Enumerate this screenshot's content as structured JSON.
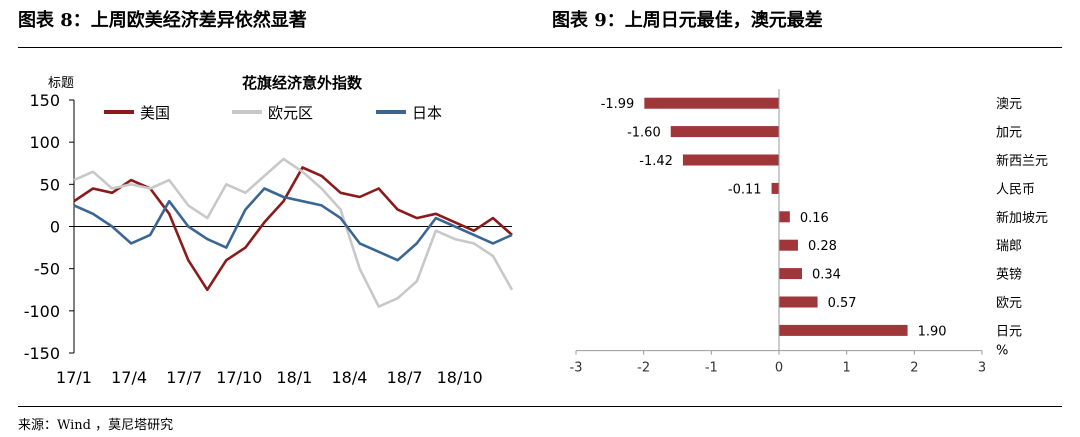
{
  "left_figure": {
    "title": "图表 8：上周欧美经济差异依然显著"
  },
  "right_figure": {
    "title": "图表 9：上周日元最佳，澳元最差"
  },
  "source": "来源：Wind ，莫尼塔研究",
  "colors": {
    "us": "#8b1a1a",
    "eu": "#c8c8c8",
    "jp": "#3b6694",
    "bar": "#a0363a"
  },
  "chart_data": [
    {
      "type": "line",
      "title": "花旗经济意外指数",
      "ylabel": "标题",
      "ylim": [
        -150,
        150
      ],
      "yticks": [
        150,
        100,
        50,
        0,
        -50,
        -100,
        -150
      ],
      "xticks": [
        "17/1",
        "17/4",
        "17/7",
        "17/10",
        "18/1",
        "18/4",
        "18/7",
        "18/10"
      ],
      "x": [
        "17/1",
        "17/2",
        "17/3",
        "17/4",
        "17/5",
        "17/6",
        "17/7",
        "17/8",
        "17/9",
        "17/10",
        "17/11",
        "17/12",
        "18/1",
        "18/2",
        "18/3",
        "18/4",
        "18/5",
        "18/6",
        "18/7",
        "18/8",
        "18/9",
        "18/10",
        "18/11",
        "18/12"
      ],
      "legend_position": "top",
      "series": [
        {
          "name": "美国",
          "color": "#8b1a1a",
          "values": [
            30,
            45,
            40,
            55,
            45,
            15,
            -40,
            -75,
            -40,
            -25,
            5,
            30,
            70,
            60,
            40,
            35,
            45,
            20,
            10,
            15,
            5,
            -5,
            10,
            -10
          ]
        },
        {
          "name": "欧元区",
          "color": "#c8c8c8",
          "values": [
            55,
            65,
            45,
            50,
            45,
            55,
            25,
            10,
            50,
            40,
            60,
            80,
            65,
            45,
            20,
            -50,
            -95,
            -85,
            -65,
            -5,
            -15,
            -20,
            -35,
            -75
          ]
        },
        {
          "name": "日本",
          "color": "#3b6694",
          "values": [
            25,
            15,
            0,
            -20,
            -10,
            30,
            0,
            -15,
            -25,
            20,
            45,
            35,
            30,
            25,
            10,
            -20,
            -30,
            -40,
            -20,
            10,
            0,
            -10,
            -20,
            -10
          ]
        }
      ]
    },
    {
      "type": "bar",
      "orientation": "horizontal",
      "unit": "%",
      "xlim": [
        -3,
        3
      ],
      "xticks": [
        -3,
        -2,
        -1,
        0,
        1,
        2,
        3
      ],
      "categories": [
        "澳元",
        "加元",
        "新西兰元",
        "人民币",
        "新加坡元",
        "瑞郎",
        "英镑",
        "欧元",
        "日元"
      ],
      "values": [
        -1.99,
        -1.6,
        -1.42,
        -0.11,
        0.16,
        0.28,
        0.34,
        0.57,
        1.9
      ],
      "labels": [
        "-1.99",
        "-1.60",
        "-1.42",
        "-0.11",
        "0.16",
        "0.28",
        "0.34",
        "0.57",
        "1.90"
      ]
    }
  ]
}
